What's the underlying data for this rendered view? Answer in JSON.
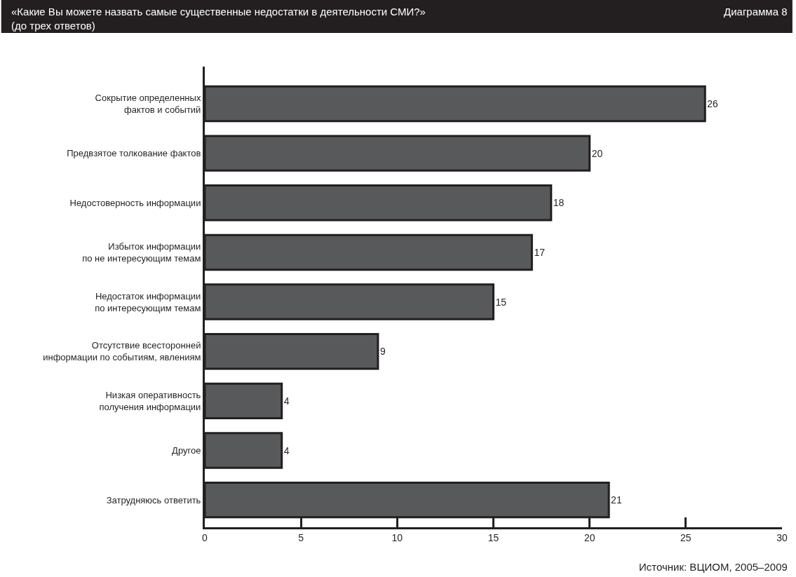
{
  "chart_data": {
    "type": "bar",
    "orientation": "horizontal",
    "title": "«Какие Вы можете назвать самые существенные недостатки в деятельности СМИ?»\n(до трех ответов)",
    "categories": [
      "Сокрытие определенных\nфактов и событий",
      "Предвзятое толкование фактов",
      "Недостоверность информации",
      "Избыток информации\nпо не интересующим темам",
      "Недостаток информации\nпо интересующим темам",
      "Отсутствие всесторонней\nинформации по событиям, явлениям",
      "Низкая оперативность\nполучения информации",
      "Другое",
      "Затрудняюсь ответить"
    ],
    "values": [
      26,
      20,
      18,
      17,
      15,
      9,
      4,
      4,
      21
    ],
    "color": "#58595b",
    "xlim": [
      0,
      30
    ],
    "xticks": [
      0,
      5,
      10,
      15,
      20,
      25,
      30
    ],
    "data_labels": true,
    "annotations": [
      "Диаграмма 8",
      "Источник: ВЦИОМ, 2005–2009"
    ]
  }
}
